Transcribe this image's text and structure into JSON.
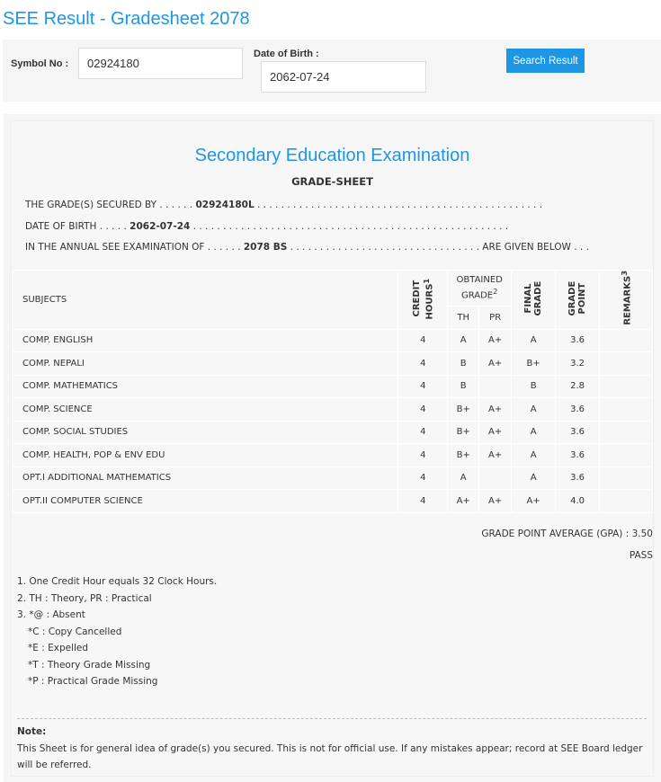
{
  "page_title": "SEE Result - Gradesheet 2078",
  "search": {
    "symbol_label": "Symbol No :",
    "symbol_value": "02924180",
    "dob_label": "Date of Birth :",
    "dob_value": "2062-07-24",
    "button": "Search Result"
  },
  "sheet": {
    "exam_title": "Secondary Education Examination",
    "subtitle": "GRADE-SHEET",
    "line1_prefix": "THE GRADE(S) SECURED BY . . . . . .",
    "symbol": "02924180L",
    "line1_suffix": ". . . . . . . . . . . . . . . . . . . . . . . . . . . . . . . . . . . . . . . . . . . . . . . .",
    "line2_prefix": "DATE OF BIRTH . . . . .",
    "dob": "2062-07-24",
    "line2_suffix": ". . . . . . . . . . . . . . . . . . . . . . . . . . . . . . . . . . . . . . . . . . . . . . . . . . . . .",
    "line3_prefix": "IN THE ANNUAL SEE EXAMINATION OF . . . . . .",
    "year": "2078 BS",
    "line3_suffix": ". . . . . . . . . . . . . . . . . . . . . . . . . . . . . . . . ARE GIVEN BELOW . . .",
    "headers": {
      "subjects": "SUBJECTS",
      "credit": "CREDIT HOURS",
      "credit_sup": "1",
      "obtained": "OBTAINED GRADE",
      "obtained_sup": "2",
      "th": "TH",
      "pr": "PR",
      "final": "FINAL GRADE",
      "gp": "GRADE POINT",
      "remarks": "REMARKS",
      "remarks_sup": "3"
    },
    "rows": [
      {
        "subject": "COMP. ENGLISH",
        "credit": "4",
        "th": "A",
        "pr": "A+",
        "final": "A",
        "gp": "3.6",
        "remarks": ""
      },
      {
        "subject": "COMP. NEPALI",
        "credit": "4",
        "th": "B",
        "pr": "A+",
        "final": "B+",
        "gp": "3.2",
        "remarks": ""
      },
      {
        "subject": "COMP. MATHEMATICS",
        "credit": "4",
        "th": "B",
        "pr": "",
        "final": "B",
        "gp": "2.8",
        "remarks": ""
      },
      {
        "subject": "COMP. SCIENCE",
        "credit": "4",
        "th": "B+",
        "pr": "A+",
        "final": "A",
        "gp": "3.6",
        "remarks": ""
      },
      {
        "subject": "COMP. SOCIAL STUDIES",
        "credit": "4",
        "th": "B+",
        "pr": "A+",
        "final": "A",
        "gp": "3.6",
        "remarks": ""
      },
      {
        "subject": "COMP. HEALTH, POP & ENV EDU",
        "credit": "4",
        "th": "B+",
        "pr": "A+",
        "final": "A",
        "gp": "3.6",
        "remarks": ""
      },
      {
        "subject": "OPT.I ADDITIONAL MATHEMATICS",
        "credit": "4",
        "th": "A",
        "pr": "",
        "final": "A",
        "gp": "3.6",
        "remarks": ""
      },
      {
        "subject": "OPT.II COMPUTER SCIENCE",
        "credit": "4",
        "th": "A+",
        "pr": "A+",
        "final": "A+",
        "gp": "4.0",
        "remarks": ""
      }
    ],
    "gpa": "GRADE POINT AVERAGE (GPA) : 3.50",
    "result": "PASS",
    "footnotes": [
      "1. One Credit Hour equals 32 Clock Hours.",
      "2. TH : Theory, PR : Practical",
      "3. *@ : Absent",
      "*C : Copy Cancelled",
      "*E : Expelled",
      "*T : Theory Grade Missing",
      "*P : Practical Grade Missing"
    ],
    "note_title": "Note:",
    "note_text": "This Sheet is for general idea of grade(s) you secured. This is not for official use. If any mistakes appear; record at SEE Board ledger will be referred."
  }
}
